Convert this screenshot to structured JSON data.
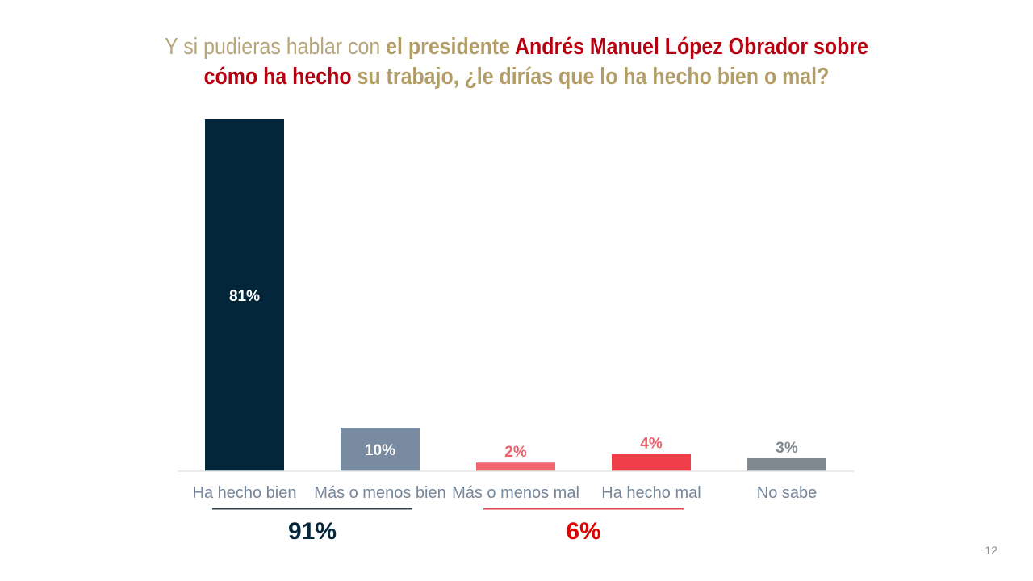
{
  "title": {
    "segments": [
      {
        "text": "Y si pudieras hablar con ",
        "style": "gold-light"
      },
      {
        "text": "el presidente ",
        "style": "gold-bold"
      },
      {
        "text": "Andrés Manuel López Obrador sobre",
        "style": "red-bold"
      },
      {
        "text": "\n",
        "style": "break"
      },
      {
        "text": "cómo ha hecho",
        "style": "red-bold"
      },
      {
        "text": " su trabajo, ¿le dirías que lo ha hecho bien o mal?",
        "style": "gold-bold"
      }
    ]
  },
  "chart_data": {
    "type": "bar",
    "title": "Y si pudieras hablar con el presidente Andrés Manuel López Obrador sobre cómo ha hecho su trabajo, ¿le dirías que lo ha hecho bien o mal?",
    "xlabel": "",
    "ylabel": "",
    "categories": [
      "Ha hecho bien",
      "Más o menos bien",
      "Más o menos mal",
      "Ha hecho mal",
      "No sabe"
    ],
    "values": [
      81,
      10,
      2,
      4,
      3
    ],
    "value_labels": [
      "81%",
      "10%",
      "2%",
      "4%",
      "3%"
    ],
    "unit": "%",
    "ylim": [
      0,
      81
    ],
    "grid": false,
    "legend": "none",
    "colors": [
      "#04263a",
      "#788ba0",
      "#f0666f",
      "#ee3e4a",
      "#7f8790"
    ],
    "label_colors": [
      "#ffffff",
      "#ffffff",
      "#e8636b",
      "#e8636b",
      "#7f8790"
    ],
    "label_inside": [
      true,
      true,
      false,
      false,
      false
    ],
    "groups": [
      {
        "label": "91%",
        "categories": [
          "Ha hecho bien",
          "Más o menos bien"
        ],
        "total": 91,
        "color": "#04263a"
      },
      {
        "label": "6%",
        "categories": [
          "Más o menos mal",
          "Ha hecho mal"
        ],
        "total": 6,
        "color": "#e00000"
      }
    ]
  },
  "page_number": "12"
}
